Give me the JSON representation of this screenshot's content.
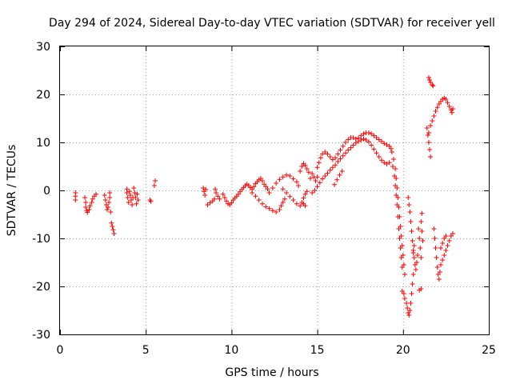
{
  "chart_data": {
    "type": "scatter",
    "title": "Day 294 of 2024, Sidereal Day-to-day VTEC variation (SDTVAR) for receiver yell",
    "xlabel": "GPS time / hours",
    "ylabel": "SDTVAR / TECUs",
    "xlim": [
      0,
      25
    ],
    "ylim": [
      -30,
      30
    ],
    "xticks": [
      0,
      5,
      10,
      15,
      20,
      25
    ],
    "yticks": [
      -30,
      -20,
      -10,
      0,
      10,
      20,
      30
    ],
    "grid": true,
    "marker": "plus",
    "color": "#ff0000",
    "series": [
      {
        "name": "SDTVAR",
        "points": [
          [
            0.9,
            -0.5
          ],
          [
            0.9,
            -1.2
          ],
          [
            0.9,
            -2.0
          ],
          [
            1.45,
            -1.5
          ],
          [
            1.5,
            -2.5
          ],
          [
            1.5,
            -3.5
          ],
          [
            1.55,
            -4.2
          ],
          [
            1.6,
            -4.6
          ],
          [
            1.7,
            -4.0
          ],
          [
            1.75,
            -3.2
          ],
          [
            1.85,
            -2.5
          ],
          [
            1.9,
            -1.8
          ],
          [
            2.0,
            -1.2
          ],
          [
            2.1,
            -0.8
          ],
          [
            2.6,
            -1.0
          ],
          [
            2.65,
            -2.0
          ],
          [
            2.7,
            -3.0
          ],
          [
            2.75,
            -4.0
          ],
          [
            2.8,
            -3.5
          ],
          [
            2.85,
            -2.5
          ],
          [
            2.9,
            -1.5
          ],
          [
            2.9,
            -0.5
          ],
          [
            2.95,
            -4.5
          ],
          [
            3.0,
            -6.8
          ],
          [
            3.05,
            -7.5
          ],
          [
            3.1,
            -8.2
          ],
          [
            3.15,
            -9.0
          ],
          [
            3.9,
            0.3
          ],
          [
            3.9,
            -0.5
          ],
          [
            3.95,
            -1.5
          ],
          [
            4.0,
            -2.5
          ],
          [
            4.05,
            -0.2
          ],
          [
            4.1,
            -1.0
          ],
          [
            4.15,
            -2.0
          ],
          [
            4.2,
            -3.0
          ],
          [
            4.25,
            -1.5
          ],
          [
            4.3,
            0.5
          ],
          [
            4.35,
            -0.5
          ],
          [
            4.4,
            -1.5
          ],
          [
            4.45,
            -2.8
          ],
          [
            4.5,
            -0.8
          ],
          [
            4.55,
            -2.0
          ],
          [
            5.25,
            -2.0
          ],
          [
            5.3,
            -2.3
          ],
          [
            5.5,
            1.0
          ],
          [
            5.55,
            2.0
          ],
          [
            8.35,
            0.5
          ],
          [
            8.4,
            -0.2
          ],
          [
            8.45,
            -1.0
          ],
          [
            8.5,
            0.2
          ],
          [
            8.6,
            -3.0
          ],
          [
            8.75,
            -2.6
          ],
          [
            8.9,
            -2.2
          ],
          [
            9.0,
            -1.8
          ],
          [
            9.05,
            0.3
          ],
          [
            9.1,
            -0.5
          ],
          [
            9.2,
            -1.2
          ],
          [
            9.3,
            -1.8
          ],
          [
            9.5,
            -0.8
          ],
          [
            9.6,
            -1.5
          ],
          [
            9.7,
            -2.2
          ],
          [
            9.8,
            -2.8
          ],
          [
            9.9,
            -3.0
          ],
          [
            10.0,
            -2.6
          ],
          [
            10.1,
            -2.0
          ],
          [
            10.2,
            -1.6
          ],
          [
            10.3,
            -1.2
          ],
          [
            10.4,
            -0.8
          ],
          [
            10.5,
            -0.3
          ],
          [
            10.6,
            0.2
          ],
          [
            10.7,
            0.6
          ],
          [
            10.8,
            1.0
          ],
          [
            10.9,
            1.3
          ],
          [
            11.0,
            1.0
          ],
          [
            11.1,
            0.6
          ],
          [
            11.2,
            0.2
          ],
          [
            11.3,
            0.8
          ],
          [
            11.4,
            1.4
          ],
          [
            11.5,
            1.8
          ],
          [
            11.6,
            2.2
          ],
          [
            11.7,
            2.5
          ],
          [
            11.8,
            2.0
          ],
          [
            11.9,
            1.3
          ],
          [
            12.0,
            0.8
          ],
          [
            12.1,
            0.3
          ],
          [
            11.2,
            -0.5
          ],
          [
            11.4,
            -1.2
          ],
          [
            11.6,
            -2.0
          ],
          [
            11.8,
            -2.8
          ],
          [
            12.0,
            -3.4
          ],
          [
            12.2,
            -3.8
          ],
          [
            12.4,
            -4.2
          ],
          [
            12.6,
            -4.5
          ],
          [
            12.8,
            -4.0
          ],
          [
            12.9,
            -3.2
          ],
          [
            13.0,
            -2.5
          ],
          [
            13.1,
            -1.8
          ],
          [
            12.2,
            -0.5
          ],
          [
            12.4,
            0.5
          ],
          [
            12.6,
            1.5
          ],
          [
            12.8,
            2.3
          ],
          [
            13.0,
            2.8
          ],
          [
            13.2,
            3.2
          ],
          [
            13.4,
            3.0
          ],
          [
            13.6,
            2.4
          ],
          [
            13.8,
            1.8
          ],
          [
            13.9,
            1.0
          ],
          [
            13.0,
            0.3
          ],
          [
            13.2,
            -0.5
          ],
          [
            13.4,
            -1.3
          ],
          [
            13.6,
            -2.0
          ],
          [
            13.8,
            -2.8
          ],
          [
            14.0,
            -3.2
          ],
          [
            14.1,
            -2.5
          ],
          [
            14.2,
            -1.6
          ],
          [
            14.3,
            -0.8
          ],
          [
            14.4,
            -0.2
          ],
          [
            14.0,
            4.0
          ],
          [
            14.1,
            5.0
          ],
          [
            14.2,
            5.6
          ],
          [
            14.3,
            5.2
          ],
          [
            14.4,
            4.5
          ],
          [
            14.5,
            3.8
          ],
          [
            14.2,
            -2.8
          ],
          [
            14.3,
            -3.2
          ],
          [
            14.6,
            2.5
          ],
          [
            14.7,
            3.5
          ],
          [
            14.8,
            2.8
          ],
          [
            14.9,
            2.0
          ],
          [
            15.0,
            2.8
          ],
          [
            14.7,
            -0.5
          ],
          [
            14.85,
            0.0
          ],
          [
            15.0,
            0.8
          ],
          [
            15.15,
            1.6
          ],
          [
            15.3,
            2.4
          ],
          [
            15.45,
            3.0
          ],
          [
            15.6,
            3.6
          ],
          [
            15.75,
            4.2
          ],
          [
            15.9,
            4.8
          ],
          [
            16.05,
            5.3
          ],
          [
            16.2,
            6.0
          ],
          [
            16.35,
            6.6
          ],
          [
            16.5,
            7.2
          ],
          [
            16.65,
            7.8
          ],
          [
            16.8,
            8.4
          ],
          [
            16.95,
            8.9
          ],
          [
            17.1,
            9.4
          ],
          [
            17.25,
            9.9
          ],
          [
            17.4,
            10.2
          ],
          [
            17.55,
            10.5
          ],
          [
            17.7,
            10.7
          ],
          [
            17.85,
            10.5
          ],
          [
            18.0,
            10.1
          ],
          [
            18.15,
            9.4
          ],
          [
            18.3,
            8.6
          ],
          [
            18.45,
            7.8
          ],
          [
            18.6,
            7.0
          ],
          [
            18.75,
            6.3
          ],
          [
            18.9,
            5.8
          ],
          [
            19.05,
            5.5
          ],
          [
            19.2,
            5.8
          ],
          [
            15.0,
            4.8
          ],
          [
            15.1,
            5.8
          ],
          [
            15.2,
            6.8
          ],
          [
            15.3,
            7.6
          ],
          [
            15.45,
            8.0
          ],
          [
            15.6,
            7.6
          ],
          [
            15.75,
            7.0
          ],
          [
            15.9,
            6.4
          ],
          [
            16.05,
            6.8
          ],
          [
            16.2,
            7.6
          ],
          [
            16.35,
            8.4
          ],
          [
            16.5,
            9.2
          ],
          [
            16.65,
            10.0
          ],
          [
            16.8,
            10.6
          ],
          [
            16.95,
            11.0
          ],
          [
            17.1,
            11.0
          ],
          [
            17.25,
            10.7
          ],
          [
            17.4,
            10.9
          ],
          [
            17.55,
            11.4
          ],
          [
            17.7,
            11.8
          ],
          [
            17.85,
            12.0
          ],
          [
            18.0,
            12.0
          ],
          [
            18.15,
            11.8
          ],
          [
            18.3,
            11.4
          ],
          [
            18.45,
            11.0
          ],
          [
            18.6,
            10.6
          ],
          [
            18.75,
            10.2
          ],
          [
            18.9,
            9.8
          ],
          [
            19.05,
            9.5
          ],
          [
            19.2,
            9.2
          ],
          [
            19.3,
            8.7
          ],
          [
            16.0,
            1.2
          ],
          [
            16.15,
            2.2
          ],
          [
            16.3,
            3.2
          ],
          [
            16.45,
            4.0
          ],
          [
            19.35,
            8.0
          ],
          [
            19.45,
            6.5
          ],
          [
            19.55,
            4.5
          ],
          [
            19.6,
            2.5
          ],
          [
            19.65,
            0.5
          ],
          [
            19.7,
            -1.5
          ],
          [
            19.75,
            -3.5
          ],
          [
            19.8,
            -5.5
          ],
          [
            19.85,
            -7.5
          ],
          [
            19.9,
            -9.5
          ],
          [
            19.95,
            -11.5
          ],
          [
            20.0,
            -13.5
          ],
          [
            20.05,
            -15.5
          ],
          [
            20.1,
            -17.5
          ],
          [
            19.4,
            5.0
          ],
          [
            19.5,
            3.0
          ],
          [
            19.55,
            1.0
          ],
          [
            19.6,
            -1.0
          ],
          [
            19.65,
            -3.0
          ],
          [
            19.7,
            -5.5
          ],
          [
            19.75,
            -8.0
          ],
          [
            19.8,
            -10.0
          ],
          [
            19.85,
            -12.0
          ],
          [
            19.9,
            -14.0
          ],
          [
            19.95,
            -16.0
          ],
          [
            19.95,
            -21.0
          ],
          [
            20.05,
            -21.5
          ],
          [
            20.1,
            -22.5
          ],
          [
            20.2,
            -23.5
          ],
          [
            20.25,
            -24.5
          ],
          [
            20.3,
            -25.5
          ],
          [
            20.35,
            -26.0
          ],
          [
            20.4,
            -25.0
          ],
          [
            20.45,
            -23.5
          ],
          [
            20.5,
            -21.5
          ],
          [
            20.55,
            -19.5
          ],
          [
            20.6,
            -17.5
          ],
          [
            20.3,
            -1.5
          ],
          [
            20.35,
            -3.0
          ],
          [
            20.4,
            -4.5
          ],
          [
            20.45,
            -6.5
          ],
          [
            20.5,
            -8.5
          ],
          [
            20.55,
            -10.5
          ],
          [
            20.6,
            -12.5
          ],
          [
            20.65,
            -14.0
          ],
          [
            20.7,
            -15.5
          ],
          [
            20.75,
            -16.5
          ],
          [
            20.8,
            -15.0
          ],
          [
            20.85,
            -13.5
          ],
          [
            20.6,
            -13.0
          ],
          [
            20.65,
            -11.5
          ],
          [
            20.9,
            -8.0
          ],
          [
            20.95,
            -10.0
          ],
          [
            21.0,
            -12.0
          ],
          [
            21.05,
            -14.0
          ],
          [
            20.95,
            -20.8
          ],
          [
            21.05,
            -20.5
          ],
          [
            21.05,
            -6.5
          ],
          [
            21.1,
            -8.5
          ],
          [
            21.15,
            -10.5
          ],
          [
            21.1,
            -4.8
          ],
          [
            21.4,
            13.0
          ],
          [
            21.45,
            11.5
          ],
          [
            21.5,
            10.0
          ],
          [
            21.55,
            8.5
          ],
          [
            21.6,
            7.0
          ],
          [
            21.5,
            12.0
          ],
          [
            21.6,
            13.5
          ],
          [
            21.7,
            14.5
          ],
          [
            21.8,
            15.5
          ],
          [
            21.9,
            16.5
          ],
          [
            22.0,
            17.3
          ],
          [
            22.1,
            18.0
          ],
          [
            22.2,
            18.5
          ],
          [
            22.3,
            19.0
          ],
          [
            22.4,
            19.2
          ],
          [
            22.5,
            19.0
          ],
          [
            22.6,
            18.3
          ],
          [
            22.7,
            17.5
          ],
          [
            22.8,
            16.8
          ],
          [
            22.85,
            16.2
          ],
          [
            22.9,
            17.0
          ],
          [
            21.5,
            23.5
          ],
          [
            21.55,
            23.0
          ],
          [
            21.6,
            22.5
          ],
          [
            21.7,
            22.0
          ],
          [
            21.75,
            21.8
          ],
          [
            21.8,
            -8.0
          ],
          [
            21.85,
            -10.0
          ],
          [
            21.9,
            -12.0
          ],
          [
            21.95,
            -14.0
          ],
          [
            22.0,
            -16.0
          ],
          [
            22.05,
            -17.5
          ],
          [
            22.1,
            -18.5
          ],
          [
            22.15,
            -17.0
          ],
          [
            22.2,
            -15.5
          ],
          [
            22.3,
            -14.5
          ],
          [
            22.4,
            -13.5
          ],
          [
            22.5,
            -12.5
          ],
          [
            22.6,
            -11.5
          ],
          [
            22.7,
            -10.5
          ],
          [
            22.8,
            -9.5
          ],
          [
            22.9,
            -9.0
          ],
          [
            22.2,
            -12.0
          ],
          [
            22.3,
            -11.0
          ],
          [
            22.4,
            -10.0
          ],
          [
            22.5,
            -9.5
          ]
        ]
      }
    ]
  }
}
